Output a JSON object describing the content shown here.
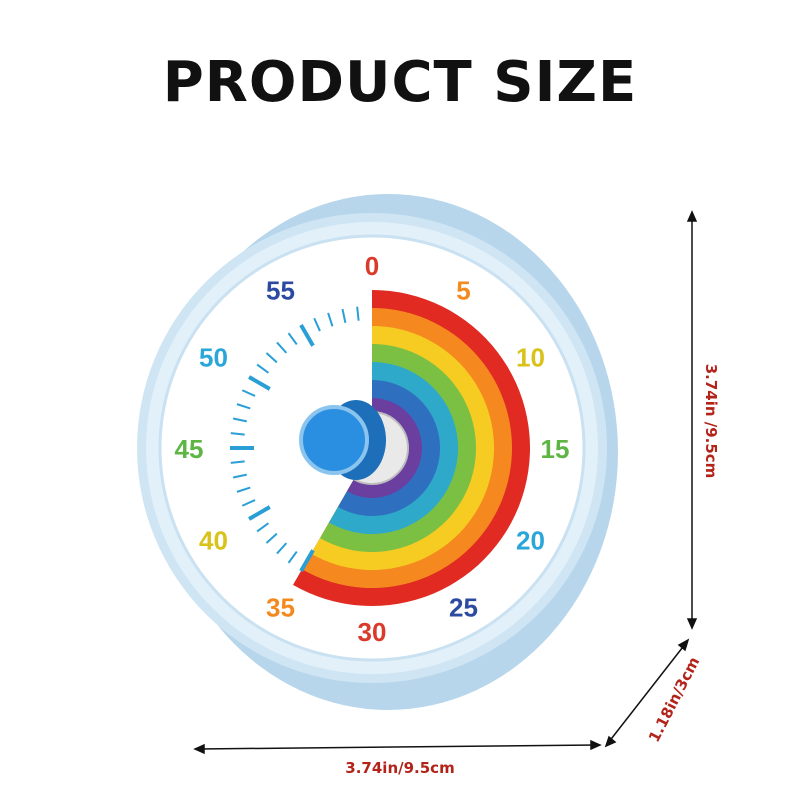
{
  "title": "PRODUCT SIZE",
  "dial": {
    "numbers": [
      "0",
      "5",
      "10",
      "15",
      "20",
      "25",
      "30",
      "35",
      "40",
      "45",
      "50",
      "55"
    ],
    "number_colors": [
      "#d93a2b",
      "#f28a1f",
      "#d9c21a",
      "#5db543",
      "#2aa6d9",
      "#2c4aa0",
      "#d93a2b",
      "#f28a1f",
      "#d9c21a",
      "#5db543",
      "#2aa6d9",
      "#2c4aa0"
    ],
    "remaining_minutes": 35,
    "rainbow_colors": [
      "#e02a22",
      "#f5891f",
      "#f7cc22",
      "#7bc043",
      "#2fa9c9",
      "#2f6fc0",
      "#6b3fa0"
    ],
    "tick_color": "#2a9fd6",
    "knob_color": "#2a8fe0",
    "case_color": "#bfdcef"
  },
  "dimensions": {
    "width": "3.74in/9.5cm",
    "height": "3.74in /9.5cm",
    "depth": "1.18in/3cm"
  },
  "colors": {
    "dimension_text": "#b3231a",
    "title": "#111111"
  }
}
